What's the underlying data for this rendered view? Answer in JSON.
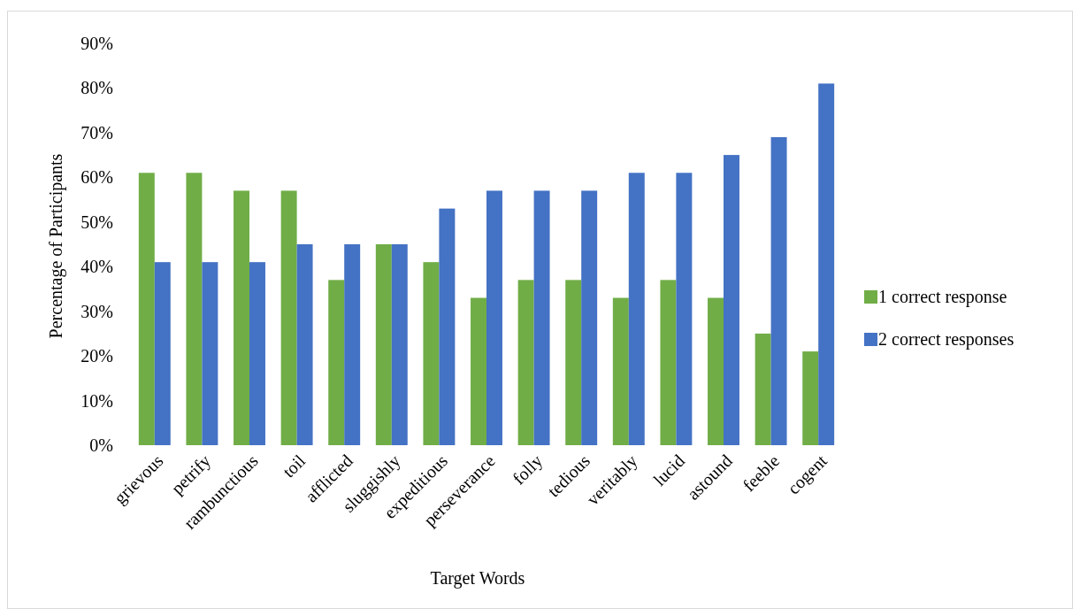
{
  "chart_data": {
    "type": "bar",
    "xlabel": "Target Words",
    "ylabel": "Percentage of Participants",
    "categories": [
      "grievous",
      "petrify",
      "rambunctious",
      "toil",
      "afflicted",
      "sluggishly",
      "expeditious",
      "perseverance",
      "folly",
      "tedious",
      "veritably",
      "lucid",
      "astound",
      "feeble",
      "cogent"
    ],
    "series": [
      {
        "name": "1 correct response",
        "color": "#70ad47",
        "values": [
          61,
          61,
          57,
          57,
          37,
          45,
          41,
          33,
          37,
          37,
          33,
          37,
          33,
          25,
          21
        ]
      },
      {
        "name": "2 correct responses",
        "color": "#4472c4",
        "values": [
          41,
          41,
          41,
          45,
          45,
          45,
          53,
          57,
          57,
          57,
          61,
          61,
          65,
          69,
          81
        ]
      }
    ],
    "ylim": [
      0,
      90
    ],
    "yticks": [
      {
        "value": 0,
        "label": "0%"
      },
      {
        "value": 10,
        "label": "10%"
      },
      {
        "value": 20,
        "label": "20%"
      },
      {
        "value": 30,
        "label": "30%"
      },
      {
        "value": 40,
        "label": "40%"
      },
      {
        "value": 50,
        "label": "50%"
      },
      {
        "value": 60,
        "label": "60%"
      },
      {
        "value": 70,
        "label": "70%"
      },
      {
        "value": 80,
        "label": "80%"
      },
      {
        "value": 90,
        "label": "90%"
      }
    ],
    "legend": "right"
  }
}
